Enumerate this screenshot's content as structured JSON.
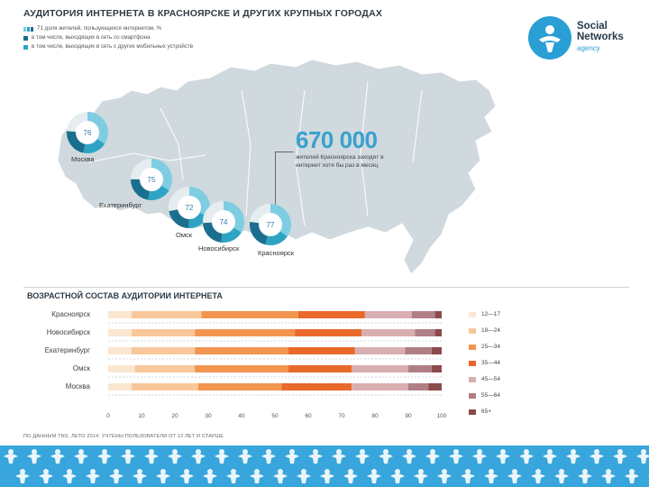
{
  "header": {
    "title": "АУДИТОРИЯ ИНТЕРНЕТА В КРАСНОЯРСКЕ И ДРУГИХ КРУПНЫХ ГОРОДАХ",
    "legend": [
      {
        "label": "71 доля жителей, пользующихся интернетом, %"
      },
      {
        "label": "в том числе, выходящих в сеть со смартфона"
      },
      {
        "label": "в том числе, выходящих в сеть с других мобильных устройств"
      }
    ]
  },
  "logo": {
    "line1": "Social",
    "line2": "Networks",
    "line3": "agency"
  },
  "callout": {
    "number": "670 000",
    "text": "жителей Красноярска заходят в интернет хотя бы раз в месяц"
  },
  "cities_map": [
    {
      "name": "Москва",
      "value": "76"
    },
    {
      "name": "Екатеринбург",
      "value": "75"
    },
    {
      "name": "Омск",
      "value": "72"
    },
    {
      "name": "Новосибирск",
      "value": "74"
    },
    {
      "name": "Красноярск",
      "value": "77"
    }
  ],
  "colors": {
    "map": "#cfd9de",
    "map_border": "#ffffff",
    "donut_main": "#1b6f8e",
    "donut_mid": "#2ea3c4",
    "donut_light": "#7fcde2",
    "accent": "#3aa0d0",
    "footer": "#38a6dc"
  },
  "section2": {
    "title": "ВОЗРАСТНОЙ СОСТАВ АУДИТОРИИ ИНТЕРНЕТА"
  },
  "footnote": "ПО ДАННЫМ TNS, ЛЕТО 2014. УЧТЕНЫ ПОЛЬЗОВАТЕЛИ ОТ 12 ЛЕТ И СТАРШЕ",
  "chart_data": {
    "type": "bar",
    "orientation": "horizontal",
    "stacked": true,
    "title": "ВОЗРАСТНОЙ СОСТАВ АУДИТОРИИ ИНТЕРНЕТА",
    "categories": [
      "Красноярск",
      "Новосибирск",
      "Екатеринбург",
      "Омск",
      "Москва"
    ],
    "xlim": [
      0,
      100
    ],
    "xticks": [
      "0",
      "10",
      "20",
      "30",
      "40",
      "50",
      "60",
      "70",
      "80",
      "90",
      "100"
    ],
    "legend_position": "right",
    "series": [
      {
        "name": "12—17",
        "color": "#fbe7d1",
        "values": [
          7,
          7,
          7,
          8,
          7
        ]
      },
      {
        "name": "18—24",
        "color": "#f8c79a",
        "values": [
          21,
          19,
          19,
          18,
          20
        ]
      },
      {
        "name": "25—34",
        "color": "#f2954f",
        "values": [
          29,
          30,
          28,
          28,
          25
        ]
      },
      {
        "name": "35—44",
        "color": "#e8692a",
        "values": [
          20,
          20,
          20,
          19,
          21
        ]
      },
      {
        "name": "45—54",
        "color": "#d9aeb0",
        "values": [
          14,
          16,
          15,
          17,
          17
        ]
      },
      {
        "name": "55—64",
        "color": "#b07f86",
        "values": [
          7,
          6,
          8,
          7,
          6
        ]
      },
      {
        "name": "65+",
        "color": "#8c4a4a",
        "values": [
          2,
          2,
          3,
          3,
          4
        ]
      }
    ]
  }
}
